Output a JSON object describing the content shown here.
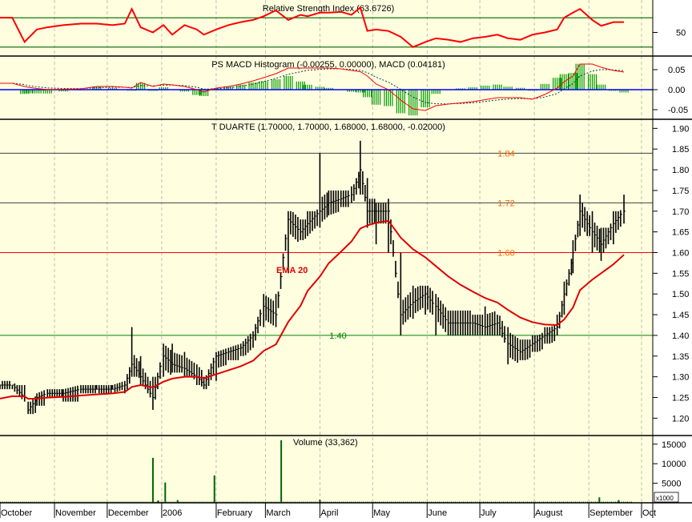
{
  "colors": {
    "background": "#ffffe0",
    "price": "#000000",
    "ema": "#e00000",
    "rsi": "#ff0000",
    "macd": "#ff0000",
    "signal": "#004040",
    "histogram": "#009900",
    "zero_line": "#0000ff",
    "volume": "#006400",
    "level_line_dark": "#404040",
    "level_line_red": "#ff0000",
    "level_line_green": "#008000",
    "label_orange": "#ff6600"
  },
  "chart_data": [
    {
      "type": "line",
      "title": "Relative Strength Index (63.6726)",
      "ylim": [
        20,
        92
      ],
      "ticks": [
        "50"
      ],
      "reference_levels": [
        70,
        30
      ],
      "grid": true
    },
    {
      "type": "bar",
      "title": "PS MACD Histogram (-0.00255, 0.00000), MACD (0.04181)",
      "ylim": [
        -0.072,
        0.08
      ],
      "ticks": [
        "0.05",
        "0.00",
        "-0.05"
      ]
    },
    {
      "type": "ohlc",
      "title": "T DUARTE (1.70000, 1.70000, 1.68000, 1.68000, -0.02000)",
      "ylim": [
        1.16,
        1.92
      ],
      "ticks": [
        "1.20",
        "1.25",
        "1.30",
        "1.35",
        "1.40",
        "1.45",
        "1.50",
        "1.55",
        "1.60",
        "1.65",
        "1.70",
        "1.75",
        "1.80",
        "1.85",
        "1.90"
      ],
      "ema_label": "EMA 20",
      "levels": [
        {
          "value": 1.84,
          "label": "1.84",
          "line": "dark"
        },
        {
          "value": 1.72,
          "label": "1.72",
          "line": "dark"
        },
        {
          "value": 1.6,
          "label": "1.60",
          "line": "red"
        },
        {
          "value": 1.4,
          "label": "1.40",
          "line": "green"
        }
      ]
    },
    {
      "type": "bar",
      "title": "Volume (33,362)",
      "ylim": [
        0,
        17000
      ],
      "ticks": [
        "15000",
        "10000",
        "5000"
      ],
      "unit": "x1000",
      "spikes": [
        {
          "date": "2005-12-27",
          "value": 11500
        },
        {
          "date": "2005-12-30",
          "value": 600
        },
        {
          "date": "2006-01-03",
          "value": 5200
        },
        {
          "date": "2006-01-10",
          "value": 700
        },
        {
          "date": "2006-01-31",
          "value": 7000
        },
        {
          "date": "2006-03-10",
          "value": 16000
        },
        {
          "date": "2006-04-01",
          "value": 800
        },
        {
          "date": "2006-09-07",
          "value": 1400
        },
        {
          "date": "2006-09-18",
          "value": 700
        }
      ],
      "baseline": 300
    }
  ],
  "series": {
    "fields": [
      "date",
      "high",
      "low",
      "close",
      "rsi",
      "macd"
    ],
    "rows": [
      [
        "2005-10-01",
        1.28,
        1.27,
        1.28,
        70,
        0.016
      ],
      [
        "2005-10-08",
        1.28,
        1.27,
        1.28,
        70,
        0.016
      ],
      [
        "2005-10-15",
        1.28,
        1.24,
        1.25,
        37,
        0.008
      ],
      [
        "2005-10-17",
        1.24,
        1.21,
        1.22,
        42,
        0.006
      ],
      [
        "2005-10-22",
        1.26,
        1.23,
        1.25,
        54,
        0.003
      ],
      [
        "2005-10-28",
        1.27,
        1.25,
        1.26,
        57,
        0.0
      ],
      [
        "2005-11-06",
        1.27,
        1.24,
        1.26,
        60,
        0.001
      ],
      [
        "2005-11-16",
        1.28,
        1.26,
        1.27,
        62,
        0.002
      ],
      [
        "2005-11-25",
        1.28,
        1.27,
        1.27,
        62,
        0.008
      ],
      [
        "2005-12-04",
        1.28,
        1.27,
        1.27,
        60,
        0.008
      ],
      [
        "2005-12-11",
        1.29,
        1.26,
        1.28,
        62,
        0.006
      ],
      [
        "2005-12-15",
        1.42,
        1.3,
        1.33,
        82,
        0.004
      ],
      [
        "2005-12-20",
        1.35,
        1.28,
        1.3,
        57,
        0.018
      ],
      [
        "2005-12-27",
        1.3,
        1.22,
        1.25,
        50,
        0.008
      ],
      [
        "2006-01-02",
        1.38,
        1.3,
        1.35,
        60,
        0.014
      ],
      [
        "2006-01-07",
        1.38,
        1.31,
        1.33,
        47,
        0.012
      ],
      [
        "2006-01-14",
        1.36,
        1.3,
        1.32,
        60,
        0.008
      ],
      [
        "2006-01-21",
        1.33,
        1.28,
        1.3,
        54,
        0.0
      ],
      [
        "2006-01-25",
        1.3,
        1.27,
        1.28,
        47,
        -0.006
      ],
      [
        "2006-02-01",
        1.36,
        1.29,
        1.35,
        54,
        0.004
      ],
      [
        "2006-02-08",
        1.37,
        1.34,
        1.36,
        60,
        0.008
      ],
      [
        "2006-02-15",
        1.38,
        1.35,
        1.37,
        64,
        0.014
      ],
      [
        "2006-02-22",
        1.41,
        1.37,
        1.4,
        67,
        0.022
      ],
      [
        "2006-02-28",
        1.5,
        1.42,
        1.47,
        72,
        0.03
      ],
      [
        "2006-03-07",
        1.5,
        1.42,
        1.45,
        80,
        0.04
      ],
      [
        "2006-03-14",
        1.7,
        1.55,
        1.68,
        67,
        0.054
      ],
      [
        "2006-03-21",
        1.68,
        1.63,
        1.65,
        74,
        0.054
      ],
      [
        "2006-03-25",
        1.7,
        1.64,
        1.67,
        72,
        0.054
      ],
      [
        "2006-04-01",
        1.84,
        1.66,
        1.7,
        77,
        0.054
      ],
      [
        "2006-04-06",
        1.75,
        1.69,
        1.72,
        77,
        0.054
      ],
      [
        "2006-04-13",
        1.75,
        1.71,
        1.73,
        78,
        0.052
      ],
      [
        "2006-04-19",
        1.76,
        1.72,
        1.74,
        74,
        0.048
      ],
      [
        "2006-04-24",
        1.87,
        1.74,
        1.8,
        84,
        0.045
      ],
      [
        "2006-04-28",
        1.78,
        1.66,
        1.7,
        52,
        0.034
      ],
      [
        "2006-05-03",
        1.72,
        1.62,
        1.7,
        54,
        0.014
      ],
      [
        "2006-05-10",
        1.73,
        1.6,
        1.7,
        52,
        0.0
      ],
      [
        "2006-05-17",
        1.6,
        1.4,
        1.45,
        44,
        -0.026
      ],
      [
        "2006-05-24",
        1.52,
        1.44,
        1.48,
        30,
        -0.048
      ],
      [
        "2006-05-31",
        1.52,
        1.45,
        1.5,
        37,
        -0.052
      ],
      [
        "2006-06-06",
        1.5,
        1.4,
        1.47,
        42,
        -0.04
      ],
      [
        "2006-06-13",
        1.46,
        1.4,
        1.43,
        40,
        -0.036
      ],
      [
        "2006-06-20",
        1.46,
        1.4,
        1.43,
        37,
        -0.033
      ],
      [
        "2006-06-27",
        1.45,
        1.4,
        1.43,
        42,
        -0.03
      ],
      [
        "2006-07-04",
        1.47,
        1.4,
        1.42,
        44,
        -0.025
      ],
      [
        "2006-07-11",
        1.45,
        1.4,
        1.43,
        47,
        -0.02
      ],
      [
        "2006-07-17",
        1.42,
        1.33,
        1.38,
        42,
        -0.02
      ],
      [
        "2006-07-24",
        1.39,
        1.34,
        1.36,
        40,
        -0.02
      ],
      [
        "2006-07-31",
        1.4,
        1.36,
        1.38,
        47,
        -0.024
      ],
      [
        "2006-08-07",
        1.42,
        1.38,
        1.4,
        50,
        -0.012
      ],
      [
        "2006-08-14",
        1.45,
        1.4,
        1.42,
        54,
        0.004
      ],
      [
        "2006-08-18",
        1.53,
        1.45,
        1.5,
        70,
        0.02
      ],
      [
        "2006-08-23",
        1.63,
        1.55,
        1.6,
        77,
        0.034
      ],
      [
        "2006-08-27",
        1.74,
        1.64,
        1.7,
        82,
        0.064
      ],
      [
        "2006-09-03",
        1.7,
        1.6,
        1.65,
        67,
        0.064
      ],
      [
        "2006-09-08",
        1.66,
        1.58,
        1.62,
        59,
        0.056
      ],
      [
        "2006-09-15",
        1.7,
        1.62,
        1.67,
        64,
        0.048
      ],
      [
        "2006-09-21",
        1.74,
        1.67,
        1.7,
        64,
        0.044
      ]
    ]
  },
  "x_axis": {
    "range": [
      "2005-10-01",
      "2006-10-01"
    ],
    "months": [
      {
        "label": "October",
        "date": "2005-10-01"
      },
      {
        "label": "November",
        "date": "2005-11-01"
      },
      {
        "label": "December",
        "date": "2005-12-01"
      },
      {
        "label": "2006",
        "date": "2006-01-01"
      },
      {
        "label": "February",
        "date": "2006-02-01"
      },
      {
        "label": "March",
        "date": "2006-03-01"
      },
      {
        "label": "April",
        "date": "2006-04-01"
      },
      {
        "label": "May",
        "date": "2006-05-01"
      },
      {
        "label": "June",
        "date": "2006-06-01"
      },
      {
        "label": "July",
        "date": "2006-07-01"
      },
      {
        "label": "August",
        "date": "2006-08-01"
      },
      {
        "label": "September",
        "date": "2006-09-01"
      },
      {
        "label": "Oct",
        "date": "2006-10-01"
      }
    ]
  }
}
